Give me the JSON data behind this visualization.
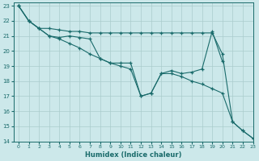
{
  "xlabel": "Humidex (Indice chaleur)",
  "bg_color": "#cce8ea",
  "grid_color": "#aacccc",
  "line_color": "#1a6b6b",
  "xlim": [
    -0.5,
    23
  ],
  "ylim": [
    14,
    23.2
  ],
  "xticks": [
    0,
    1,
    2,
    3,
    4,
    5,
    6,
    7,
    8,
    9,
    10,
    11,
    12,
    13,
    14,
    15,
    16,
    17,
    18,
    19,
    20,
    21,
    22,
    23
  ],
  "yticks": [
    14,
    15,
    16,
    17,
    18,
    19,
    20,
    21,
    22,
    23
  ],
  "series": [
    {
      "x": [
        0,
        1,
        2,
        3,
        4,
        5,
        6,
        7,
        8,
        9,
        10,
        11,
        12,
        13,
        14,
        15,
        16,
        17,
        18,
        19,
        20,
        21,
        22,
        23
      ],
      "y": [
        23.0,
        22.0,
        21.5,
        21.5,
        21.4,
        21.3,
        21.3,
        21.2,
        21.2,
        21.2,
        21.2,
        21.2,
        21.2,
        21.2,
        21.2,
        21.2,
        21.2,
        21.2,
        21.2,
        21.2,
        19.8,
        15.3,
        14.7,
        14.2
      ]
    },
    {
      "x": [
        0,
        1,
        2,
        3,
        4,
        5,
        6,
        7,
        8,
        9,
        10,
        11,
        12,
        13,
        14,
        15,
        16,
        17,
        18,
        19,
        20
      ],
      "y": [
        23.0,
        22.0,
        21.5,
        21.0,
        20.9,
        21.0,
        20.9,
        20.8,
        19.5,
        19.2,
        19.2,
        19.2,
        17.0,
        17.2,
        18.5,
        18.7,
        18.5,
        18.6,
        18.8,
        21.3,
        19.3
      ]
    },
    {
      "x": [
        0,
        1,
        2,
        3,
        4,
        5,
        6,
        7,
        8,
        9,
        10,
        11,
        12,
        13,
        14,
        15,
        16,
        17,
        18,
        19,
        20,
        21,
        22,
        23
      ],
      "y": [
        23.0,
        22.0,
        21.5,
        21.0,
        20.8,
        20.5,
        20.2,
        19.8,
        19.5,
        19.2,
        19.0,
        18.8,
        17.0,
        17.2,
        18.5,
        18.5,
        18.3,
        18.0,
        17.8,
        17.5,
        17.2,
        15.3,
        14.7,
        14.2
      ]
    }
  ]
}
